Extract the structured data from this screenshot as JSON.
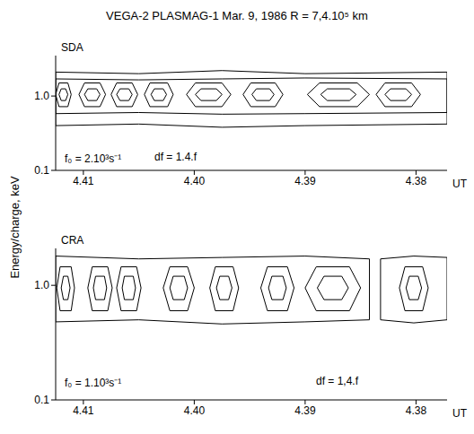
{
  "title": "VEGA-2 PLASMAG-1 Mar. 9, 1986 R = 7,4.10⁵ km",
  "ylabel": "Energy/charge, keV",
  "chart_data": [
    {
      "type": "contour",
      "title": "SDA",
      "annotations": [
        "f₀ = 2.10³s⁻¹",
        "df = 1.4.f"
      ],
      "xlabel": "UT",
      "xlim": [
        4.4125,
        4.3772
      ],
      "xticks": [
        4.41,
        {
          "value": 4.4,
          "label": "4.40"
        },
        4.39,
        4.38
      ],
      "ylim": [
        0.1,
        3.5
      ],
      "yticks": [
        0.1,
        {
          "value": 1,
          "label": "1.0"
        }
      ],
      "log": "y",
      "color": "#000000",
      "contours": [
        {
          "x": [
            4.4125,
            4.405,
            4.3975,
            4.39,
            4.3772,
            4.3772,
            4.39,
            4.3975,
            4.405,
            4.4125,
            4.4125
          ],
          "y": [
            2.1,
            2.0,
            2.2,
            2.0,
            2.1,
            0.42,
            0.4,
            0.38,
            0.42,
            0.4,
            2.1
          ]
        },
        {
          "x": [
            4.4125,
            4.405,
            4.3975,
            4.39,
            4.3772,
            4.3772,
            4.39,
            4.3975,
            4.405,
            4.4125,
            4.4125
          ],
          "y": [
            1.7,
            1.65,
            1.7,
            1.75,
            1.7,
            0.6,
            0.58,
            0.57,
            0.6,
            0.58,
            1.7
          ]
        },
        {
          "x": [
            4.4111,
            4.4114,
            4.4122,
            4.4125,
            4.4122,
            4.4114,
            4.4111
          ],
          "y": [
            1.05,
            1.5,
            1.5,
            1.05,
            0.72,
            0.72,
            1.05
          ]
        },
        {
          "x": [
            4.4114,
            4.4116,
            4.412,
            4.4122,
            4.412,
            4.4116,
            4.4114
          ],
          "y": [
            1.05,
            1.25,
            1.25,
            1.05,
            0.87,
            0.87,
            1.05
          ]
        },
        {
          "x": [
            4.408,
            4.4085,
            4.4099,
            4.4104,
            4.4099,
            4.4085,
            4.408
          ],
          "y": [
            1.05,
            1.5,
            1.5,
            1.05,
            0.72,
            0.72,
            1.05
          ]
        },
        {
          "x": [
            4.4085,
            4.4088,
            4.4096,
            4.4099,
            4.4096,
            4.4088,
            4.4085
          ],
          "y": [
            1.05,
            1.25,
            1.25,
            1.05,
            0.87,
            0.87,
            1.05
          ]
        },
        {
          "x": [
            4.4051,
            4.4056,
            4.407,
            4.4075,
            4.407,
            4.4056,
            4.4051
          ],
          "y": [
            1.05,
            1.5,
            1.5,
            1.05,
            0.72,
            0.72,
            1.05
          ]
        },
        {
          "x": [
            4.4056,
            4.4059,
            4.4067,
            4.407,
            4.4067,
            4.4059,
            4.4056
          ],
          "y": [
            1.05,
            1.25,
            1.25,
            1.05,
            0.87,
            0.87,
            1.05
          ]
        },
        {
          "x": [
            4.4019,
            4.4024,
            4.404,
            4.4045,
            4.404,
            4.4024,
            4.4019
          ],
          "y": [
            1.05,
            1.5,
            1.5,
            1.05,
            0.72,
            0.72,
            1.05
          ]
        },
        {
          "x": [
            4.4025,
            4.4028,
            4.4036,
            4.4039,
            4.4036,
            4.4028,
            4.4025
          ],
          "y": [
            1.05,
            1.25,
            1.25,
            1.05,
            0.87,
            0.87,
            1.05
          ]
        },
        {
          "x": [
            4.3967,
            4.3975,
            4.3999,
            4.4007,
            4.3999,
            4.3975,
            4.3967
          ],
          "y": [
            1.05,
            1.5,
            1.5,
            1.05,
            0.72,
            0.72,
            1.05
          ]
        },
        {
          "x": [
            4.3975,
            4.398,
            4.3994,
            4.3999,
            4.3994,
            4.398,
            4.3975
          ],
          "y": [
            1.05,
            1.25,
            1.25,
            1.05,
            0.87,
            0.87,
            1.05
          ]
        },
        {
          "x": [
            4.392,
            4.3927,
            4.3949,
            4.3956,
            4.3949,
            4.3927,
            4.392
          ],
          "y": [
            1.05,
            1.5,
            1.5,
            1.05,
            0.72,
            0.72,
            1.05
          ]
        },
        {
          "x": [
            4.3928,
            4.3932,
            4.3944,
            4.3948,
            4.3944,
            4.3932,
            4.3928
          ],
          "y": [
            1.05,
            1.25,
            1.25,
            1.05,
            0.87,
            0.87,
            1.05
          ]
        },
        {
          "x": [
            4.3842,
            4.3853,
            4.3887,
            4.3898,
            4.3887,
            4.3853,
            4.3842
          ],
          "y": [
            1.05,
            1.5,
            1.5,
            1.05,
            0.72,
            0.72,
            1.05
          ]
        },
        {
          "x": [
            4.3854,
            4.386,
            4.388,
            4.3886,
            4.388,
            4.386,
            4.3854
          ],
          "y": [
            1.05,
            1.25,
            1.25,
            1.05,
            0.87,
            0.87,
            1.05
          ]
        },
        {
          "x": [
            4.3796,
            4.3804,
            4.3828,
            4.3836,
            4.3828,
            4.3804,
            4.3796
          ],
          "y": [
            1.05,
            1.5,
            1.5,
            1.05,
            0.72,
            0.72,
            1.05
          ]
        },
        {
          "x": [
            4.3804,
            4.3809,
            4.3823,
            4.3828,
            4.3823,
            4.3809,
            4.3804
          ],
          "y": [
            1.05,
            1.25,
            1.25,
            1.05,
            0.87,
            0.87,
            1.05
          ]
        }
      ]
    },
    {
      "type": "contour",
      "title": "CRA",
      "annotations": [
        "f₀ = 1.10³s⁻¹",
        "df = 1,4.f"
      ],
      "xlabel": "UT",
      "xlim": [
        4.4125,
        4.3772
      ],
      "xticks": [
        4.41,
        {
          "value": 4.4,
          "label": "4.40"
        },
        4.39,
        4.38
      ],
      "ylim": [
        0.1,
        2.1
      ],
      "yticks": [
        0.1,
        {
          "value": 1,
          "label": "1.0"
        }
      ],
      "log": "y",
      "color": "#000000",
      "contours": [
        {
          "x": [
            4.4125,
            4.405,
            4.3975,
            4.39,
            4.3842,
            4.3842,
            4.39,
            4.3975,
            4.405,
            4.4125,
            4.4125
          ],
          "y": [
            1.8,
            1.7,
            1.75,
            1.8,
            1.7,
            0.5,
            0.48,
            0.46,
            0.5,
            0.48,
            1.8
          ]
        },
        {
          "x": [
            4.3832,
            4.3802,
            4.3772,
            4.3772,
            4.3802,
            4.3832,
            4.3832
          ],
          "y": [
            1.7,
            1.8,
            1.75,
            0.5,
            0.47,
            0.5,
            1.7
          ]
        },
        {
          "x": [
            4.4108,
            4.4111,
            4.4121,
            4.4124,
            4.4121,
            4.4111,
            4.4108
          ],
          "y": [
            0.95,
            1.45,
            1.45,
            0.95,
            0.6,
            0.6,
            0.95
          ]
        },
        {
          "x": [
            4.4112,
            4.4114,
            4.4118,
            4.412,
            4.4118,
            4.4114,
            4.4112
          ],
          "y": [
            0.95,
            1.2,
            1.2,
            0.95,
            0.75,
            0.75,
            0.95
          ]
        },
        {
          "x": [
            4.4074,
            4.4078,
            4.4092,
            4.4096,
            4.4092,
            4.4078,
            4.4074
          ],
          "y": [
            0.95,
            1.45,
            1.45,
            0.95,
            0.6,
            0.6,
            0.95
          ]
        },
        {
          "x": [
            4.4079,
            4.4081,
            4.4089,
            4.4091,
            4.4089,
            4.4081,
            4.4079
          ],
          "y": [
            0.95,
            1.2,
            1.2,
            0.95,
            0.75,
            0.75,
            0.95
          ]
        },
        {
          "x": [
            4.4048,
            4.4052,
            4.4066,
            4.407,
            4.4066,
            4.4052,
            4.4048
          ],
          "y": [
            0.95,
            1.45,
            1.45,
            0.95,
            0.6,
            0.6,
            0.95
          ]
        },
        {
          "x": [
            4.4053,
            4.4055,
            4.4063,
            4.4065,
            4.4063,
            4.4055,
            4.4053
          ],
          "y": [
            0.95,
            1.2,
            1.2,
            0.95,
            0.75,
            0.75,
            0.95
          ]
        },
        {
          "x": [
            4.4,
            4.4006,
            4.4022,
            4.4028,
            4.4022,
            4.4006,
            4.4
          ],
          "y": [
            0.95,
            1.45,
            1.45,
            0.95,
            0.6,
            0.6,
            0.95
          ]
        },
        {
          "x": [
            4.4006,
            4.4009,
            4.4019,
            4.4022,
            4.4019,
            4.4009,
            4.4006
          ],
          "y": [
            0.95,
            1.2,
            1.2,
            0.95,
            0.75,
            0.75,
            0.95
          ]
        },
        {
          "x": [
            4.396,
            4.3965,
            4.3981,
            4.3986,
            4.3981,
            4.3965,
            4.396
          ],
          "y": [
            0.95,
            1.45,
            1.45,
            0.95,
            0.6,
            0.6,
            0.95
          ]
        },
        {
          "x": [
            4.3966,
            4.3969,
            4.3977,
            4.398,
            4.3977,
            4.3969,
            4.3966
          ],
          "y": [
            0.95,
            1.2,
            1.2,
            0.95,
            0.75,
            0.75,
            0.95
          ]
        },
        {
          "x": [
            4.391,
            4.3916,
            4.3934,
            4.394,
            4.3934,
            4.3916,
            4.391
          ],
          "y": [
            0.95,
            1.45,
            1.45,
            0.95,
            0.6,
            0.6,
            0.95
          ]
        },
        {
          "x": [
            4.3917,
            4.392,
            4.393,
            4.3933,
            4.393,
            4.392,
            4.3917
          ],
          "y": [
            0.95,
            1.2,
            1.2,
            0.95,
            0.75,
            0.75,
            0.95
          ]
        },
        {
          "x": [
            4.385,
            4.386,
            4.389,
            4.39,
            4.389,
            4.386,
            4.385
          ],
          "y": [
            0.95,
            1.45,
            1.45,
            0.95,
            0.6,
            0.6,
            0.95
          ]
        },
        {
          "x": [
            4.3861,
            4.3867,
            4.3883,
            4.3889,
            4.3883,
            4.3867,
            4.3861
          ],
          "y": [
            0.95,
            1.2,
            1.2,
            0.95,
            0.75,
            0.75,
            0.95
          ]
        },
        {
          "x": [
            4.3789,
            4.3794,
            4.381,
            4.3815,
            4.381,
            4.3794,
            4.3789
          ],
          "y": [
            0.95,
            1.45,
            1.45,
            0.95,
            0.6,
            0.6,
            0.95
          ]
        },
        {
          "x": [
            4.3795,
            4.3798,
            4.3806,
            4.3809,
            4.3806,
            4.3798,
            4.3795
          ],
          "y": [
            0.95,
            1.2,
            1.2,
            0.95,
            0.75,
            0.75,
            0.95
          ]
        }
      ]
    }
  ]
}
